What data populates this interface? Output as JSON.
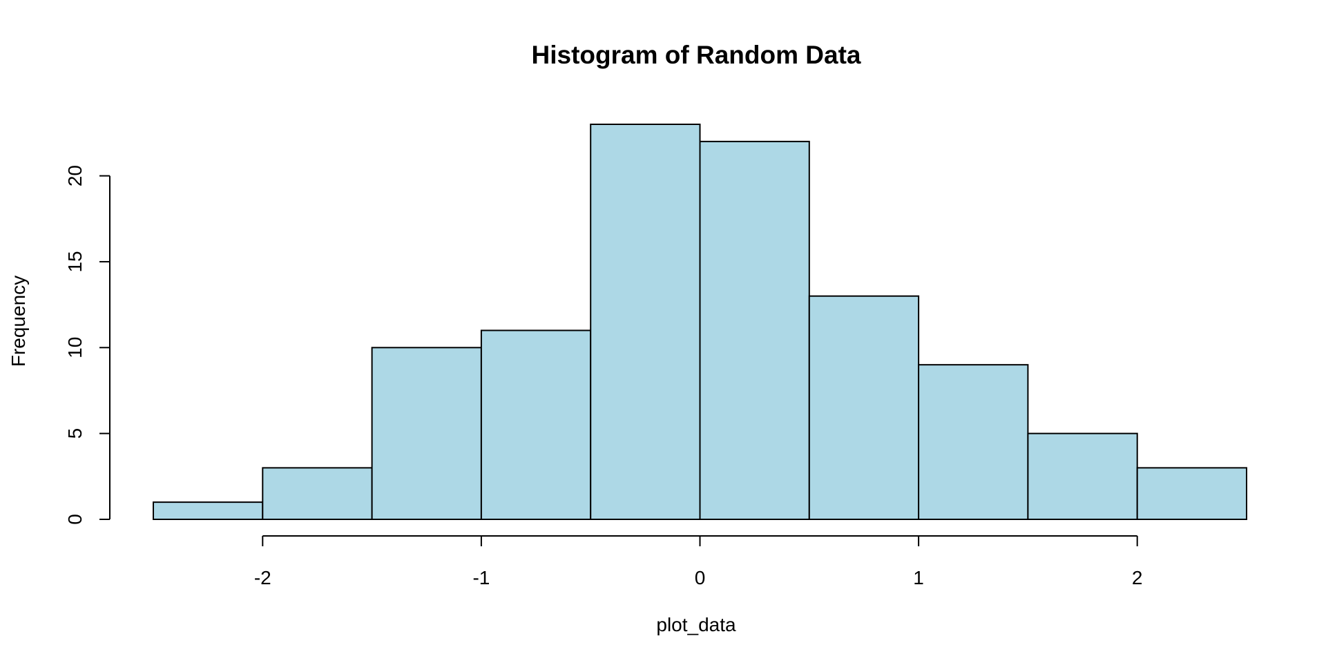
{
  "chart_data": {
    "type": "bar",
    "title": "Histogram of Random Data",
    "xlabel": "plot_data",
    "ylabel": "Frequency",
    "bin_edges": [
      -2.5,
      -2.0,
      -1.5,
      -1.0,
      -0.5,
      0.0,
      0.5,
      1.0,
      1.5,
      2.0,
      2.5
    ],
    "values": [
      1,
      3,
      10,
      11,
      23,
      22,
      13,
      9,
      5,
      3
    ],
    "x_ticks": [
      -2,
      -1,
      0,
      1,
      2
    ],
    "x_tick_labels": [
      "-2",
      "-1",
      "0",
      "1",
      "2"
    ],
    "y_ticks": [
      0,
      5,
      10,
      15,
      20
    ],
    "y_tick_labels": [
      "0",
      "5",
      "10",
      "15",
      "20"
    ],
    "xlim": [
      -2.5,
      2.5
    ],
    "ylim": [
      0,
      23
    ],
    "grid": false,
    "colors": {
      "bar_fill": "#add8e6",
      "bar_stroke": "#000000"
    }
  }
}
